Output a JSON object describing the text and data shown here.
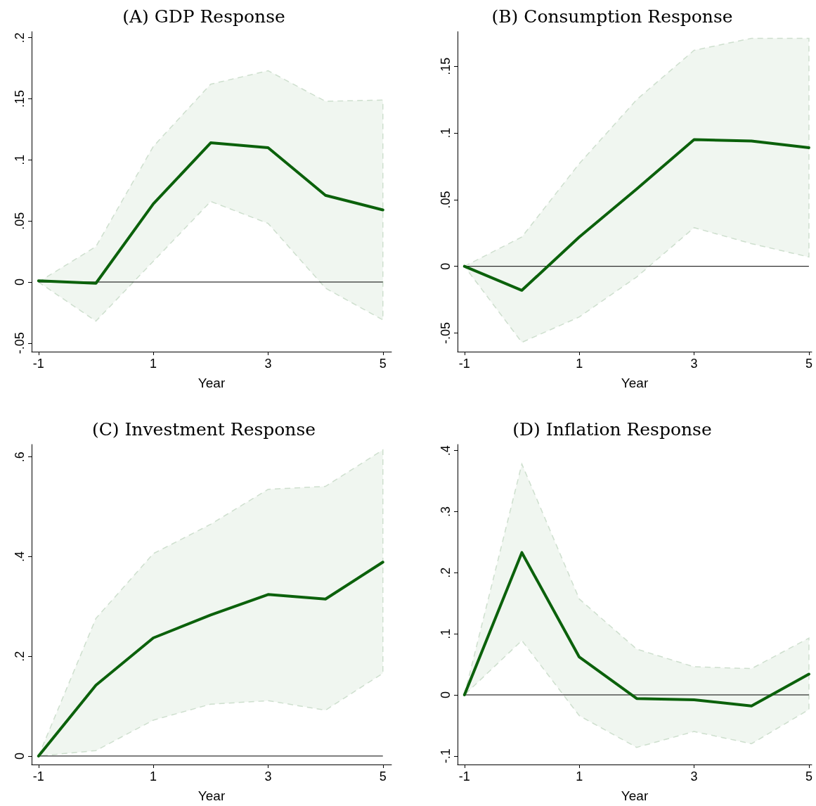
{
  "chart_data": [
    {
      "type": "line",
      "title": "(A) GDP Response",
      "xlabel": "Year",
      "x": [
        -1,
        0,
        1,
        2,
        3,
        4,
        5
      ],
      "xlim": [
        -1.12,
        5.15
      ],
      "xticks": [
        -1,
        1,
        3,
        5
      ],
      "ylim": [
        -0.057,
        0.205
      ],
      "yticks": [
        {
          "value": -0.05,
          "label": "-.05"
        },
        {
          "value": 0,
          "label": "0"
        },
        {
          "value": 0.05,
          "label": ".05"
        },
        {
          "value": 0.1,
          "label": ".1"
        },
        {
          "value": 0.15,
          "label": ".15"
        },
        {
          "value": 0.2,
          "label": ".2"
        }
      ],
      "marker": "none",
      "line_style": "solid",
      "grid": false,
      "series": [
        {
          "color": "#0b610b",
          "values": [
            0.001,
            -0.001,
            0.064,
            0.114,
            0.11,
            0.071,
            0.059
          ],
          "lower": [
            0,
            -0.032,
            0.017,
            0.066,
            0.048,
            -0.005,
            -0.031
          ],
          "upper": [
            0,
            0.029,
            0.111,
            0.162,
            0.173,
            0.148,
            0.149
          ]
        }
      ],
      "ref_lines": [
        {
          "axis": "y",
          "value": 0,
          "color": "#000000"
        }
      ]
    },
    {
      "type": "line",
      "title": "(B) Consumption Response",
      "xlabel": "Year",
      "x": [
        -1,
        0,
        1,
        2,
        3,
        4,
        5
      ],
      "xlim": [
        -1.12,
        5.05
      ],
      "xticks": [
        -1,
        1,
        3,
        5
      ],
      "ylim": [
        -0.064,
        0.176
      ],
      "yticks": [
        {
          "value": -0.05,
          "label": "-.05"
        },
        {
          "value": 0,
          "label": "0"
        },
        {
          "value": 0.05,
          "label": ".05"
        },
        {
          "value": 0.1,
          "label": ".1"
        },
        {
          "value": 0.15,
          "label": ".15"
        }
      ],
      "marker": "none",
      "line_style": "solid",
      "grid": false,
      "series": [
        {
          "color": "#0b610b",
          "values": [
            0,
            -0.018,
            0.022,
            0.058,
            0.095,
            0.094,
            0.089
          ],
          "lower": [
            0,
            -0.057,
            -0.038,
            -0.008,
            0.029,
            0.017,
            0.007
          ],
          "upper": [
            0,
            0.022,
            0.077,
            0.125,
            0.162,
            0.171,
            0.171
          ]
        }
      ],
      "ref_lines": [
        {
          "axis": "y",
          "value": 0,
          "color": "#000000"
        }
      ]
    },
    {
      "type": "line",
      "title": "(C) Investment Response",
      "xlabel": "Year",
      "x": [
        -1,
        0,
        1,
        2,
        3,
        4,
        5
      ],
      "xlim": [
        -1.12,
        5.15
      ],
      "xticks": [
        -1,
        1,
        3,
        5
      ],
      "ylim": [
        -0.017,
        0.625
      ],
      "yticks": [
        {
          "value": 0,
          "label": "0"
        },
        {
          "value": 0.2,
          "label": ".2"
        },
        {
          "value": 0.4,
          "label": ".4"
        },
        {
          "value": 0.6,
          "label": ".6"
        }
      ],
      "marker": "none",
      "line_style": "solid",
      "grid": false,
      "series": [
        {
          "color": "#0b610b",
          "values": [
            0,
            0.142,
            0.237,
            0.283,
            0.324,
            0.315,
            0.389
          ],
          "lower": [
            0,
            0.011,
            0.072,
            0.104,
            0.111,
            0.092,
            0.166
          ],
          "upper": [
            0,
            0.276,
            0.406,
            0.465,
            0.535,
            0.541,
            0.614
          ]
        }
      ],
      "ref_lines": [
        {
          "axis": "y",
          "value": 0,
          "color": "#000000"
        }
      ]
    },
    {
      "type": "line",
      "title": "(D) Inflation Response",
      "xlabel": "Year",
      "x": [
        -1,
        0,
        1,
        2,
        3,
        4,
        5
      ],
      "xlim": [
        -1.12,
        5.05
      ],
      "xticks": [
        -1,
        1,
        3,
        5
      ],
      "ylim": [
        -0.114,
        0.41
      ],
      "yticks": [
        {
          "value": -0.1,
          "label": "-.1"
        },
        {
          "value": 0,
          "label": "0"
        },
        {
          "value": 0.1,
          "label": ".1"
        },
        {
          "value": 0.2,
          "label": ".2"
        },
        {
          "value": 0.3,
          "label": ".3"
        },
        {
          "value": 0.4,
          "label": ".4"
        }
      ],
      "marker": "none",
      "line_style": "solid",
      "grid": false,
      "series": [
        {
          "color": "#0b610b",
          "values": [
            0,
            0.233,
            0.062,
            -0.006,
            -0.008,
            -0.018,
            0.034
          ],
          "lower": [
            0,
            0.089,
            -0.034,
            -0.086,
            -0.06,
            -0.08,
            -0.024
          ],
          "upper": [
            0,
            0.378,
            0.157,
            0.075,
            0.046,
            0.043,
            0.093
          ]
        }
      ],
      "ref_lines": [
        {
          "axis": "y",
          "value": 0,
          "color": "#000000"
        }
      ]
    }
  ]
}
